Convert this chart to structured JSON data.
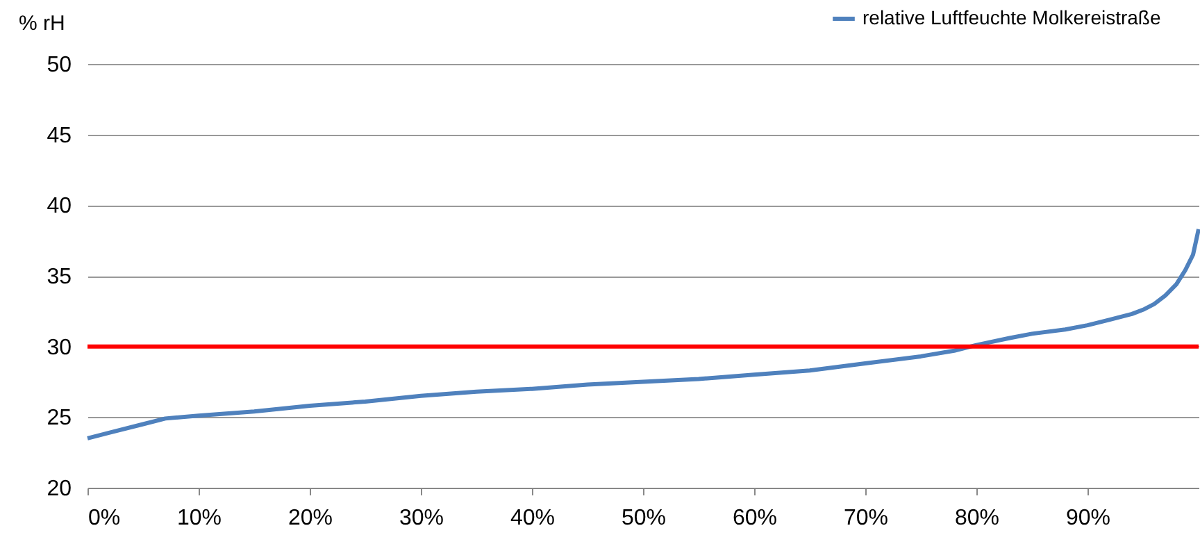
{
  "chart_data": {
    "type": "line",
    "ylabel": "% rH",
    "x": [
      0,
      2,
      5,
      7,
      10,
      15,
      20,
      25,
      30,
      35,
      40,
      45,
      50,
      55,
      60,
      65,
      70,
      75,
      78,
      80,
      83,
      85,
      88,
      90,
      92,
      94,
      95,
      96,
      97,
      98,
      98.8,
      99.5,
      100
    ],
    "series": [
      {
        "name": "relative Luftfeuchte Molkereistraße",
        "color": "#4f81bd",
        "values": [
          23.5,
          23.9,
          24.5,
          24.9,
          25.1,
          25.4,
          25.8,
          26.1,
          26.5,
          26.8,
          27.0,
          27.3,
          27.5,
          27.7,
          28.0,
          28.3,
          28.8,
          29.3,
          29.7,
          30.1,
          30.6,
          30.9,
          31.2,
          31.5,
          31.9,
          32.3,
          32.6,
          33.0,
          33.6,
          34.4,
          35.4,
          36.5,
          38.3
        ]
      }
    ],
    "xlim": [
      0,
      100
    ],
    "xticks": [
      {
        "value": 0,
        "label": "0%"
      },
      {
        "value": 10,
        "label": "10%"
      },
      {
        "value": 20,
        "label": "20%"
      },
      {
        "value": 30,
        "label": "30%"
      },
      {
        "value": 40,
        "label": "40%"
      },
      {
        "value": 50,
        "label": "50%"
      },
      {
        "value": 60,
        "label": "60%"
      },
      {
        "value": 70,
        "label": "70%"
      },
      {
        "value": 80,
        "label": "80%"
      },
      {
        "value": 90,
        "label": "90%"
      }
    ],
    "ylim": [
      20,
      50
    ],
    "yticks": [
      20,
      25,
      30,
      35,
      40,
      45,
      50
    ],
    "ref_lines": [
      {
        "axis": "y",
        "value": 30,
        "color": "#ff0000"
      }
    ],
    "grid": "y",
    "legend": "top right",
    "marker": "none",
    "line_style": "solid"
  }
}
